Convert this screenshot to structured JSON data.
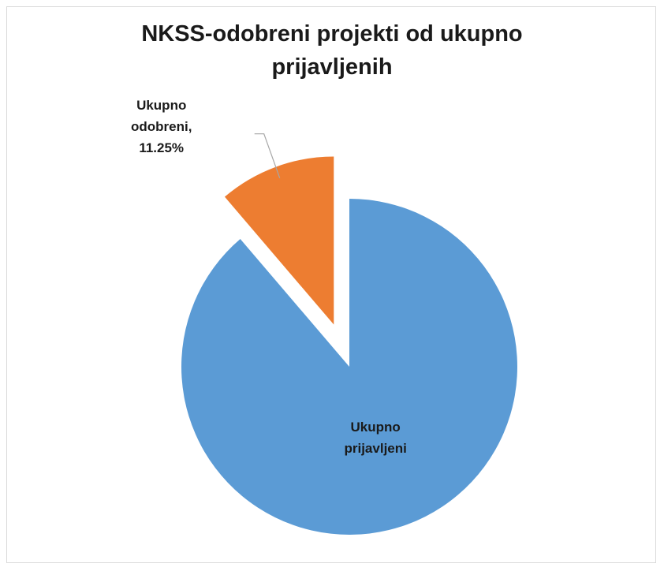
{
  "chart_data": {
    "type": "pie",
    "title": "NKSS-odobreni projekti od ukupno prijavljenih",
    "categories": [
      "Ukupno prijavljeni",
      "Ukupno odobreni"
    ],
    "values": [
      88.75,
      11.25
    ],
    "value_labels": [
      null,
      "11.25%"
    ],
    "label_separator": ",",
    "colors": [
      "#5b9bd5",
      "#ed7d31"
    ],
    "exploded": [
      false,
      true
    ]
  }
}
